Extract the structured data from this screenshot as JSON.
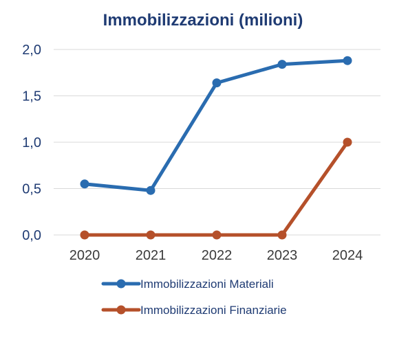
{
  "chart_data": {
    "type": "line",
    "title": "Immobilizzazioni (milioni)",
    "xlabel": "",
    "ylabel": "",
    "categories": [
      "2020",
      "2021",
      "2022",
      "2023",
      "2024"
    ],
    "ylim": [
      0,
      2
    ],
    "yticks": [
      "0,0",
      "0,5",
      "1,0",
      "1,5",
      "2,0"
    ],
    "grid": true,
    "legend_position": "bottom",
    "series": [
      {
        "name": "Immobilizzazioni Materiali",
        "values": [
          0.55,
          0.48,
          1.64,
          1.84,
          1.88
        ],
        "color": "#2a6cb0"
      },
      {
        "name": "Immobilizzazioni Finanziarie",
        "values": [
          0,
          0,
          0,
          0,
          1.0
        ],
        "color": "#b5502a"
      }
    ]
  }
}
